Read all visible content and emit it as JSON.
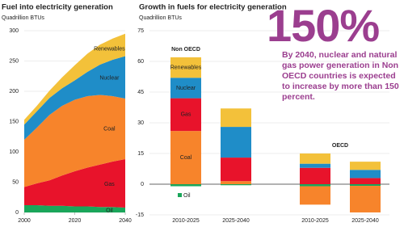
{
  "chart_data": [
    {
      "type": "area",
      "title": "Fuel into electricity generation",
      "subtitle": "Quadrillion BTUs",
      "x": [
        2000,
        2005,
        2010,
        2015,
        2020,
        2025,
        2030,
        2035,
        2040
      ],
      "xlim": [
        2000,
        2040
      ],
      "xticks": [
        2000,
        2020,
        2040
      ],
      "ylim": [
        0,
        300
      ],
      "yticks": [
        0,
        50,
        100,
        150,
        200,
        250,
        300
      ],
      "grid": true,
      "series": [
        {
          "name": "Oil",
          "color": "#1aa65a",
          "values": [
            12,
            12,
            11,
            11,
            10,
            10,
            9,
            9,
            8
          ]
        },
        {
          "name": "Gas",
          "color": "#e8132b",
          "values": [
            30,
            36,
            42,
            50,
            58,
            64,
            70,
            75,
            80
          ]
        },
        {
          "name": "Coal",
          "color": "#f7842b",
          "values": [
            78,
            92,
            108,
            115,
            118,
            118,
            115,
            108,
            100
          ]
        },
        {
          "name": "Nuclear",
          "color": "#1f8dc8",
          "values": [
            25,
            27,
            28,
            29,
            32,
            40,
            50,
            60,
            70
          ]
        },
        {
          "name": "Renewables",
          "color": "#f3c13a",
          "values": [
            8,
            9,
            12,
            18,
            25,
            30,
            33,
            35,
            37
          ]
        }
      ]
    },
    {
      "type": "stacked-bar",
      "title": "Growth in fuels for electricity generation",
      "subtitle": "Quadrillion BTUs",
      "categories": [
        "2010-2025",
        "2025-2040",
        "2010-2025",
        "2025-2040"
      ],
      "group_labels": [
        "Non OECD",
        "OECD"
      ],
      "ylim": [
        -15,
        75
      ],
      "yticks": [
        -15,
        0,
        15,
        30,
        45,
        60,
        75
      ],
      "grid": true,
      "series": [
        {
          "name": "Oil",
          "color": "#1aa65a",
          "values": [
            -1,
            -0.5,
            -1,
            -0.8
          ]
        },
        {
          "name": "Coal",
          "color": "#f7842b",
          "values": [
            26,
            1.5,
            -9,
            -13
          ]
        },
        {
          "name": "Gas",
          "color": "#e8132b",
          "values": [
            16,
            11.5,
            8,
            3
          ]
        },
        {
          "name": "Nuclear",
          "color": "#1f8dc8",
          "values": [
            10,
            15,
            2,
            4
          ]
        },
        {
          "name": "Renewables",
          "color": "#f3c13a",
          "values": [
            10,
            9,
            5,
            4
          ]
        }
      ]
    }
  ],
  "callout": {
    "headline": "150%",
    "text": "By 2040, nuclear and natural gas power generation in Non OECD countries is expected to increase by more than 150 percent.",
    "color": "#9b3e8f"
  }
}
